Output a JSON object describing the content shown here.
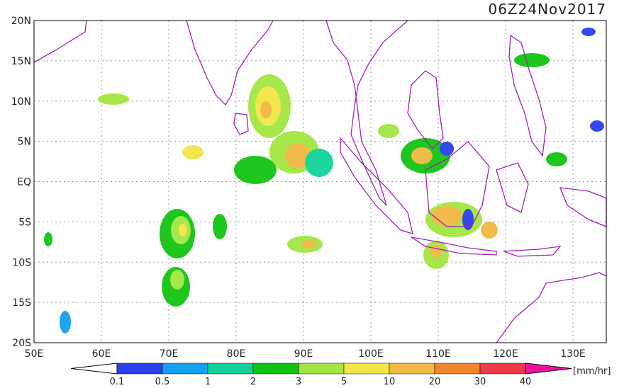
{
  "title": "06Z24Nov2017",
  "lat_labels": [
    "20N",
    "15N",
    "10N",
    "5N",
    "EQ",
    "5S",
    "10S",
    "15S",
    "20S"
  ],
  "lon_labels": [
    "50E",
    "60E",
    "70E",
    "80E",
    "90E",
    "100E",
    "110E",
    "120E",
    "130E"
  ],
  "colorbar": {
    "labels": [
      "0.1",
      "0.5",
      "1",
      "2",
      "3",
      "5",
      "10",
      "20",
      "30",
      "40"
    ],
    "colors": [
      "#2a3ff0",
      "#12a0f0",
      "#12d29a",
      "#12c412",
      "#a2e640",
      "#f2e646",
      "#f2b840",
      "#f2862e",
      "#f03a46"
    ],
    "under_color": "#ffffff",
    "over_color": "#f0129e",
    "unit": "[mm/hr]"
  }
}
